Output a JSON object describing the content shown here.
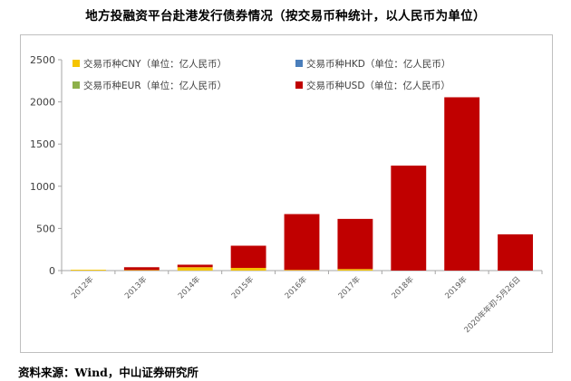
{
  "title": "地方投融资平台赴港发行债券情况（按交易币种统计，以人民币为单位）",
  "source": "资料来源：Wind，中山证券研究所",
  "chart_data": {
    "type": "bar",
    "stacked": true,
    "categories": [
      "2012年",
      "2013年",
      "2014年",
      "2015年",
      "2016年",
      "2017年",
      "2018年",
      "2019年",
      "2020年年初-5月26日"
    ],
    "series": [
      {
        "name": "交易币种CNY（单位：亿人民币）",
        "color": "#f5c400",
        "values": [
          10,
          6,
          40,
          32,
          8,
          18,
          0,
          0,
          0
        ]
      },
      {
        "name": "交易币种HKD（单位：亿人民币）",
        "color": "#4a7ebb",
        "values": [
          0,
          0,
          0,
          0,
          0,
          0,
          0,
          0,
          0
        ]
      },
      {
        "name": "交易币种EUR（单位：亿人民币）",
        "color": "#8db04a",
        "values": [
          0,
          0,
          0,
          0,
          0,
          0,
          0,
          0,
          0
        ]
      },
      {
        "name": "交易币种USD（单位：亿人民币）",
        "color": "#c00000",
        "values": [
          0,
          34,
          30,
          263,
          662,
          595,
          1245,
          2055,
          430
        ]
      }
    ],
    "ylim": [
      0,
      2500
    ],
    "yticks": [
      0,
      500,
      1000,
      1500,
      2000,
      2500
    ],
    "grid": false,
    "legend": "top, two columns",
    "xlabel": "",
    "ylabel": ""
  }
}
